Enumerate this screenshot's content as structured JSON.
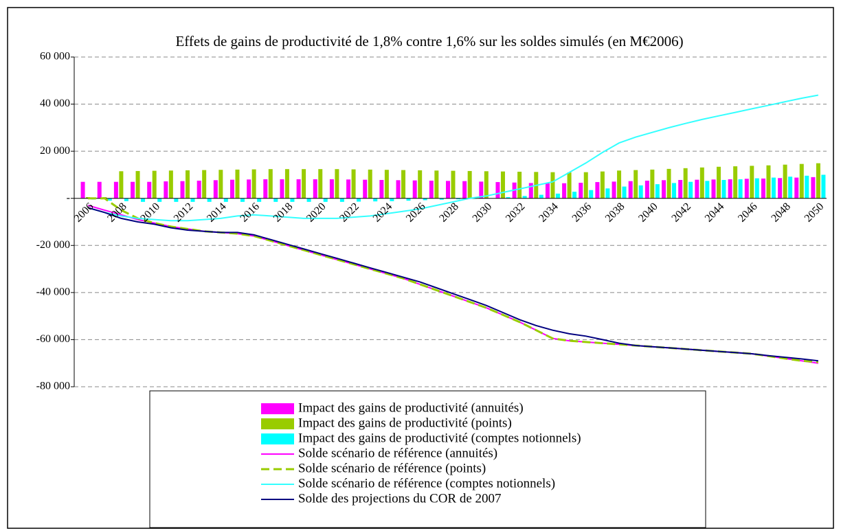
{
  "chart_data": {
    "type": "bar",
    "title": "Effets de gains de productivité de 1,8% contre 1,6% sur les soldes simulés (en M€2006)",
    "categories": [
      "2006",
      null,
      "2008",
      null,
      "2010",
      null,
      "2012",
      null,
      "2014",
      null,
      "2016",
      null,
      "2018",
      null,
      "2020",
      null,
      "2022",
      null,
      "2024",
      null,
      "2026",
      null,
      "2028",
      null,
      "2030",
      null,
      "2032",
      null,
      "2034",
      null,
      "2036",
      null,
      "2038",
      null,
      "2040",
      null,
      "2042",
      null,
      "2044",
      null,
      "2046",
      null,
      "2048",
      null,
      "2050"
    ],
    "ylim": [
      -80000,
      60000
    ],
    "yticks": [
      {
        "value": -80000,
        "label": "-80 000"
      },
      {
        "value": -60000,
        "label": "-60 000"
      },
      {
        "value": -40000,
        "label": "-40 000"
      },
      {
        "value": -20000,
        "label": "-20 000"
      },
      {
        "value": 0,
        "label": "-"
      },
      {
        "value": 20000,
        "label": "20 000"
      },
      {
        "value": 40000,
        "label": "40 000"
      },
      {
        "value": 60000,
        "label": "60 000"
      }
    ],
    "grid": true,
    "series": [
      {
        "name": "Impact des gains de productivité (annuités)",
        "kind": "bar",
        "color": "#ff00ff",
        "values": [
          7000,
          7000,
          7000,
          7000,
          7000,
          7200,
          7300,
          7500,
          7700,
          7900,
          8000,
          8100,
          8100,
          8100,
          8100,
          8100,
          8000,
          7900,
          7800,
          7700,
          7600,
          7500,
          7400,
          7300,
          7100,
          6900,
          6700,
          6500,
          6400,
          6400,
          6600,
          6900,
          7100,
          7300,
          7500,
          7700,
          7800,
          7900,
          8000,
          8100,
          8300,
          8400,
          8600,
          8800,
          9000
        ]
      },
      {
        "name": "Impact des gains de productivité (points)",
        "kind": "bar",
        "color": "#99cc00",
        "values": [
          500,
          500,
          11500,
          11600,
          11700,
          11800,
          11900,
          12000,
          12100,
          12200,
          12300,
          12400,
          12400,
          12400,
          12400,
          12400,
          12300,
          12200,
          12100,
          12000,
          11900,
          11800,
          11700,
          11600,
          11500,
          11400,
          11300,
          11200,
          11100,
          11000,
          11100,
          11400,
          11800,
          12000,
          12200,
          12500,
          12800,
          13100,
          13400,
          13600,
          13800,
          14000,
          14300,
          14600,
          14900
        ]
      },
      {
        "name": "Impact des gains de productivité (comptes notionnels)",
        "kind": "bar",
        "color": "#00ffff",
        "values": [
          -500,
          -1000,
          -1200,
          -1500,
          -1500,
          -1500,
          -1500,
          -1500,
          -1500,
          -1500,
          -1500,
          -1500,
          -1500,
          -1500,
          -1500,
          -1500,
          -1400,
          -1300,
          -1200,
          -1000,
          -800,
          -600,
          -400,
          -200,
          0,
          500,
          1000,
          1500,
          2000,
          2800,
          3500,
          4200,
          5000,
          5500,
          6000,
          6500,
          7000,
          7400,
          7800,
          8100,
          8500,
          8800,
          9200,
          9600,
          10000
        ]
      },
      {
        "name": "Solde scénario de référence (annuités)",
        "kind": "line",
        "color": "#ff00ff",
        "dash": false,
        "values": [
          -3000,
          -5000,
          -7000,
          -9000,
          -10500,
          -12000,
          -13000,
          -14000,
          -14500,
          -15000,
          -16000,
          -18000,
          -20000,
          -22000,
          -24000,
          -26000,
          -28000,
          -30000,
          -32000,
          -34000,
          -36500,
          -39000,
          -41500,
          -44000,
          -46500,
          -49500,
          -52500,
          -56000,
          -59500,
          -60500,
          -61000,
          -61500,
          -62000,
          -62500,
          -63000,
          -63500,
          -64000,
          -64500,
          -65000,
          -65500,
          -66000,
          -67000,
          -68000,
          -69000,
          -70000
        ]
      },
      {
        "name": "Solde scénario de référence (points)",
        "kind": "line",
        "color": "#99cc00",
        "dash": true,
        "values": [
          0,
          0,
          -5000,
          -8500,
          -10500,
          -12000,
          -13000,
          -14000,
          -14500,
          -15000,
          -16000,
          -18000,
          -20000,
          -22000,
          -24000,
          -26000,
          -28000,
          -30000,
          -32000,
          -34000,
          -36500,
          -39000,
          -41500,
          -44000,
          -46500,
          -49500,
          -52500,
          -56000,
          -59500,
          -60500,
          -61000,
          -61500,
          -62000,
          -62500,
          -63000,
          -63500,
          -64000,
          -64500,
          -65000,
          -65500,
          -66000,
          -67000,
          -68000,
          -69000,
          -69500
        ]
      },
      {
        "name": "Solde scénario de référence (comptes notionnels)",
        "kind": "line",
        "color": "#33ffff",
        "dash": false,
        "values": [
          -4000,
          -6000,
          -7500,
          -8500,
          -9000,
          -9500,
          -9500,
          -9000,
          -8500,
          -7500,
          -7000,
          -7500,
          -8000,
          -8500,
          -8500,
          -8500,
          -8000,
          -7500,
          -6500,
          -5500,
          -4500,
          -3000,
          -1500,
          0,
          1000,
          2500,
          4000,
          5500,
          7000,
          11000,
          15000,
          19500,
          23500,
          26000,
          28000,
          30000,
          31800,
          33500,
          35000,
          36500,
          38000,
          39500,
          41000,
          42500,
          43800
        ]
      },
      {
        "name": "Solde des projections du COR de 2007",
        "kind": "line",
        "color": "#000080",
        "dash": false,
        "values": [
          -4000,
          -6000,
          -8500,
          -10000,
          -11000,
          -12500,
          -13500,
          -14000,
          -14500,
          -14500,
          -15500,
          -17500,
          -19500,
          -21500,
          -23500,
          -25500,
          -27500,
          -29500,
          -31500,
          -33500,
          -35500,
          -38000,
          -40500,
          -43000,
          -45500,
          -48500,
          -51500,
          -54000,
          -56000,
          -57500,
          -58500,
          -60000,
          -61500,
          -62500,
          -63000,
          -63500,
          -64000,
          -64500,
          -65000,
          -65500,
          -66000,
          -66800,
          -67500,
          -68200,
          -69000
        ]
      }
    ]
  }
}
